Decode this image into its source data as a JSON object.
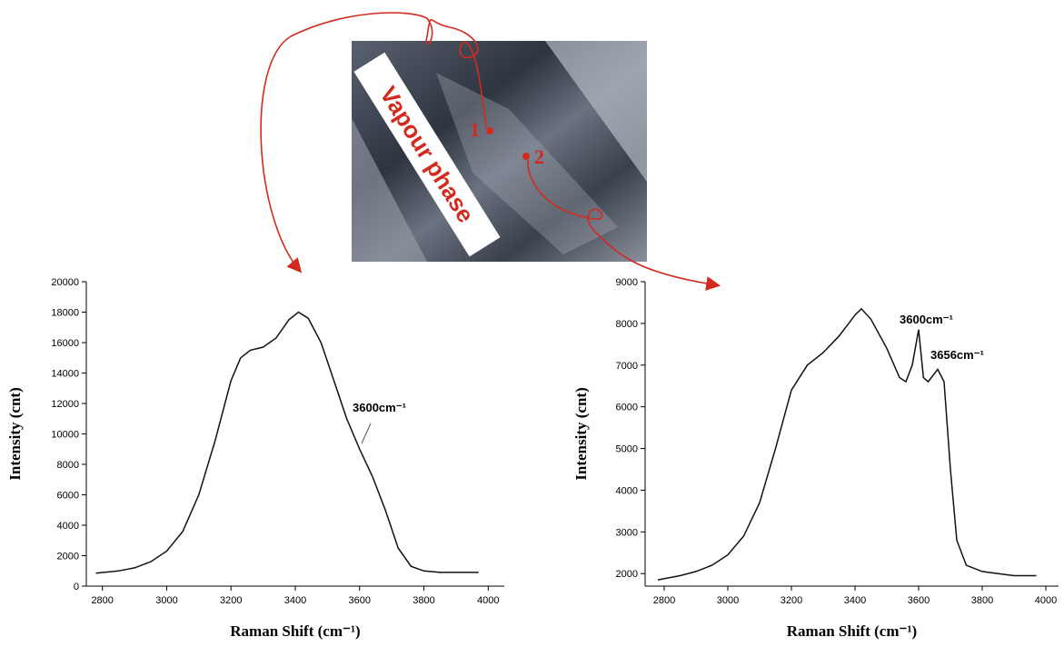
{
  "photo": {
    "label": "Vapour phase",
    "points": [
      "1",
      "2"
    ]
  },
  "chart_data": [
    {
      "type": "line",
      "x_label": "Raman Shift (cm⁻¹)",
      "y_label": "Intensity (cnt)",
      "color": "#111111",
      "x": [
        2780,
        2850,
        2900,
        2950,
        3000,
        3050,
        3100,
        3150,
        3200,
        3230,
        3260,
        3300,
        3340,
        3380,
        3410,
        3440,
        3480,
        3520,
        3560,
        3600,
        3640,
        3680,
        3720,
        3760,
        3800,
        3850,
        3900,
        3970
      ],
      "values": [
        850,
        1000,
        1200,
        1600,
        2300,
        3600,
        6000,
        9500,
        13500,
        15000,
        15500,
        15700,
        16300,
        17500,
        18000,
        17600,
        16000,
        13500,
        11000,
        9000,
        7200,
        5000,
        2500,
        1300,
        1000,
        900,
        900,
        900
      ],
      "xlim": [
        2750,
        4050
      ],
      "xticks": [
        2800,
        3000,
        3200,
        3400,
        3600,
        3800,
        4000
      ],
      "ylim": [
        0,
        20000
      ],
      "yticks": [
        0,
        2000,
        4000,
        6000,
        8000,
        10000,
        12000,
        14000,
        16000,
        18000,
        20000
      ],
      "annotations": [
        "3600cm⁻¹"
      ]
    },
    {
      "type": "line",
      "x_label": "Raman Shift (cm⁻¹)",
      "y_label": "Intensity (cnt)",
      "color": "#111111",
      "x": [
        2780,
        2850,
        2900,
        2950,
        3000,
        3050,
        3100,
        3150,
        3200,
        3250,
        3300,
        3350,
        3400,
        3420,
        3450,
        3500,
        3540,
        3560,
        3580,
        3600,
        3615,
        3630,
        3660,
        3680,
        3700,
        3720,
        3750,
        3800,
        3850,
        3900,
        3970
      ],
      "values": [
        1850,
        1950,
        2050,
        2200,
        2450,
        2900,
        3700,
        5000,
        6400,
        7000,
        7300,
        7700,
        8200,
        8350,
        8100,
        7400,
        6700,
        6600,
        7000,
        7850,
        6700,
        6600,
        6900,
        6600,
        4500,
        2800,
        2200,
        2050,
        2000,
        1950,
        1950
      ],
      "xlim": [
        2740,
        4040
      ],
      "xticks": [
        2800,
        3000,
        3200,
        3400,
        3600,
        3800,
        4000
      ],
      "ylim": [
        1700,
        9000
      ],
      "yticks": [
        2000,
        3000,
        4000,
        5000,
        6000,
        7000,
        8000,
        9000
      ],
      "annotations": [
        "3600cm⁻¹",
        "3656cm⁻¹"
      ]
    }
  ]
}
